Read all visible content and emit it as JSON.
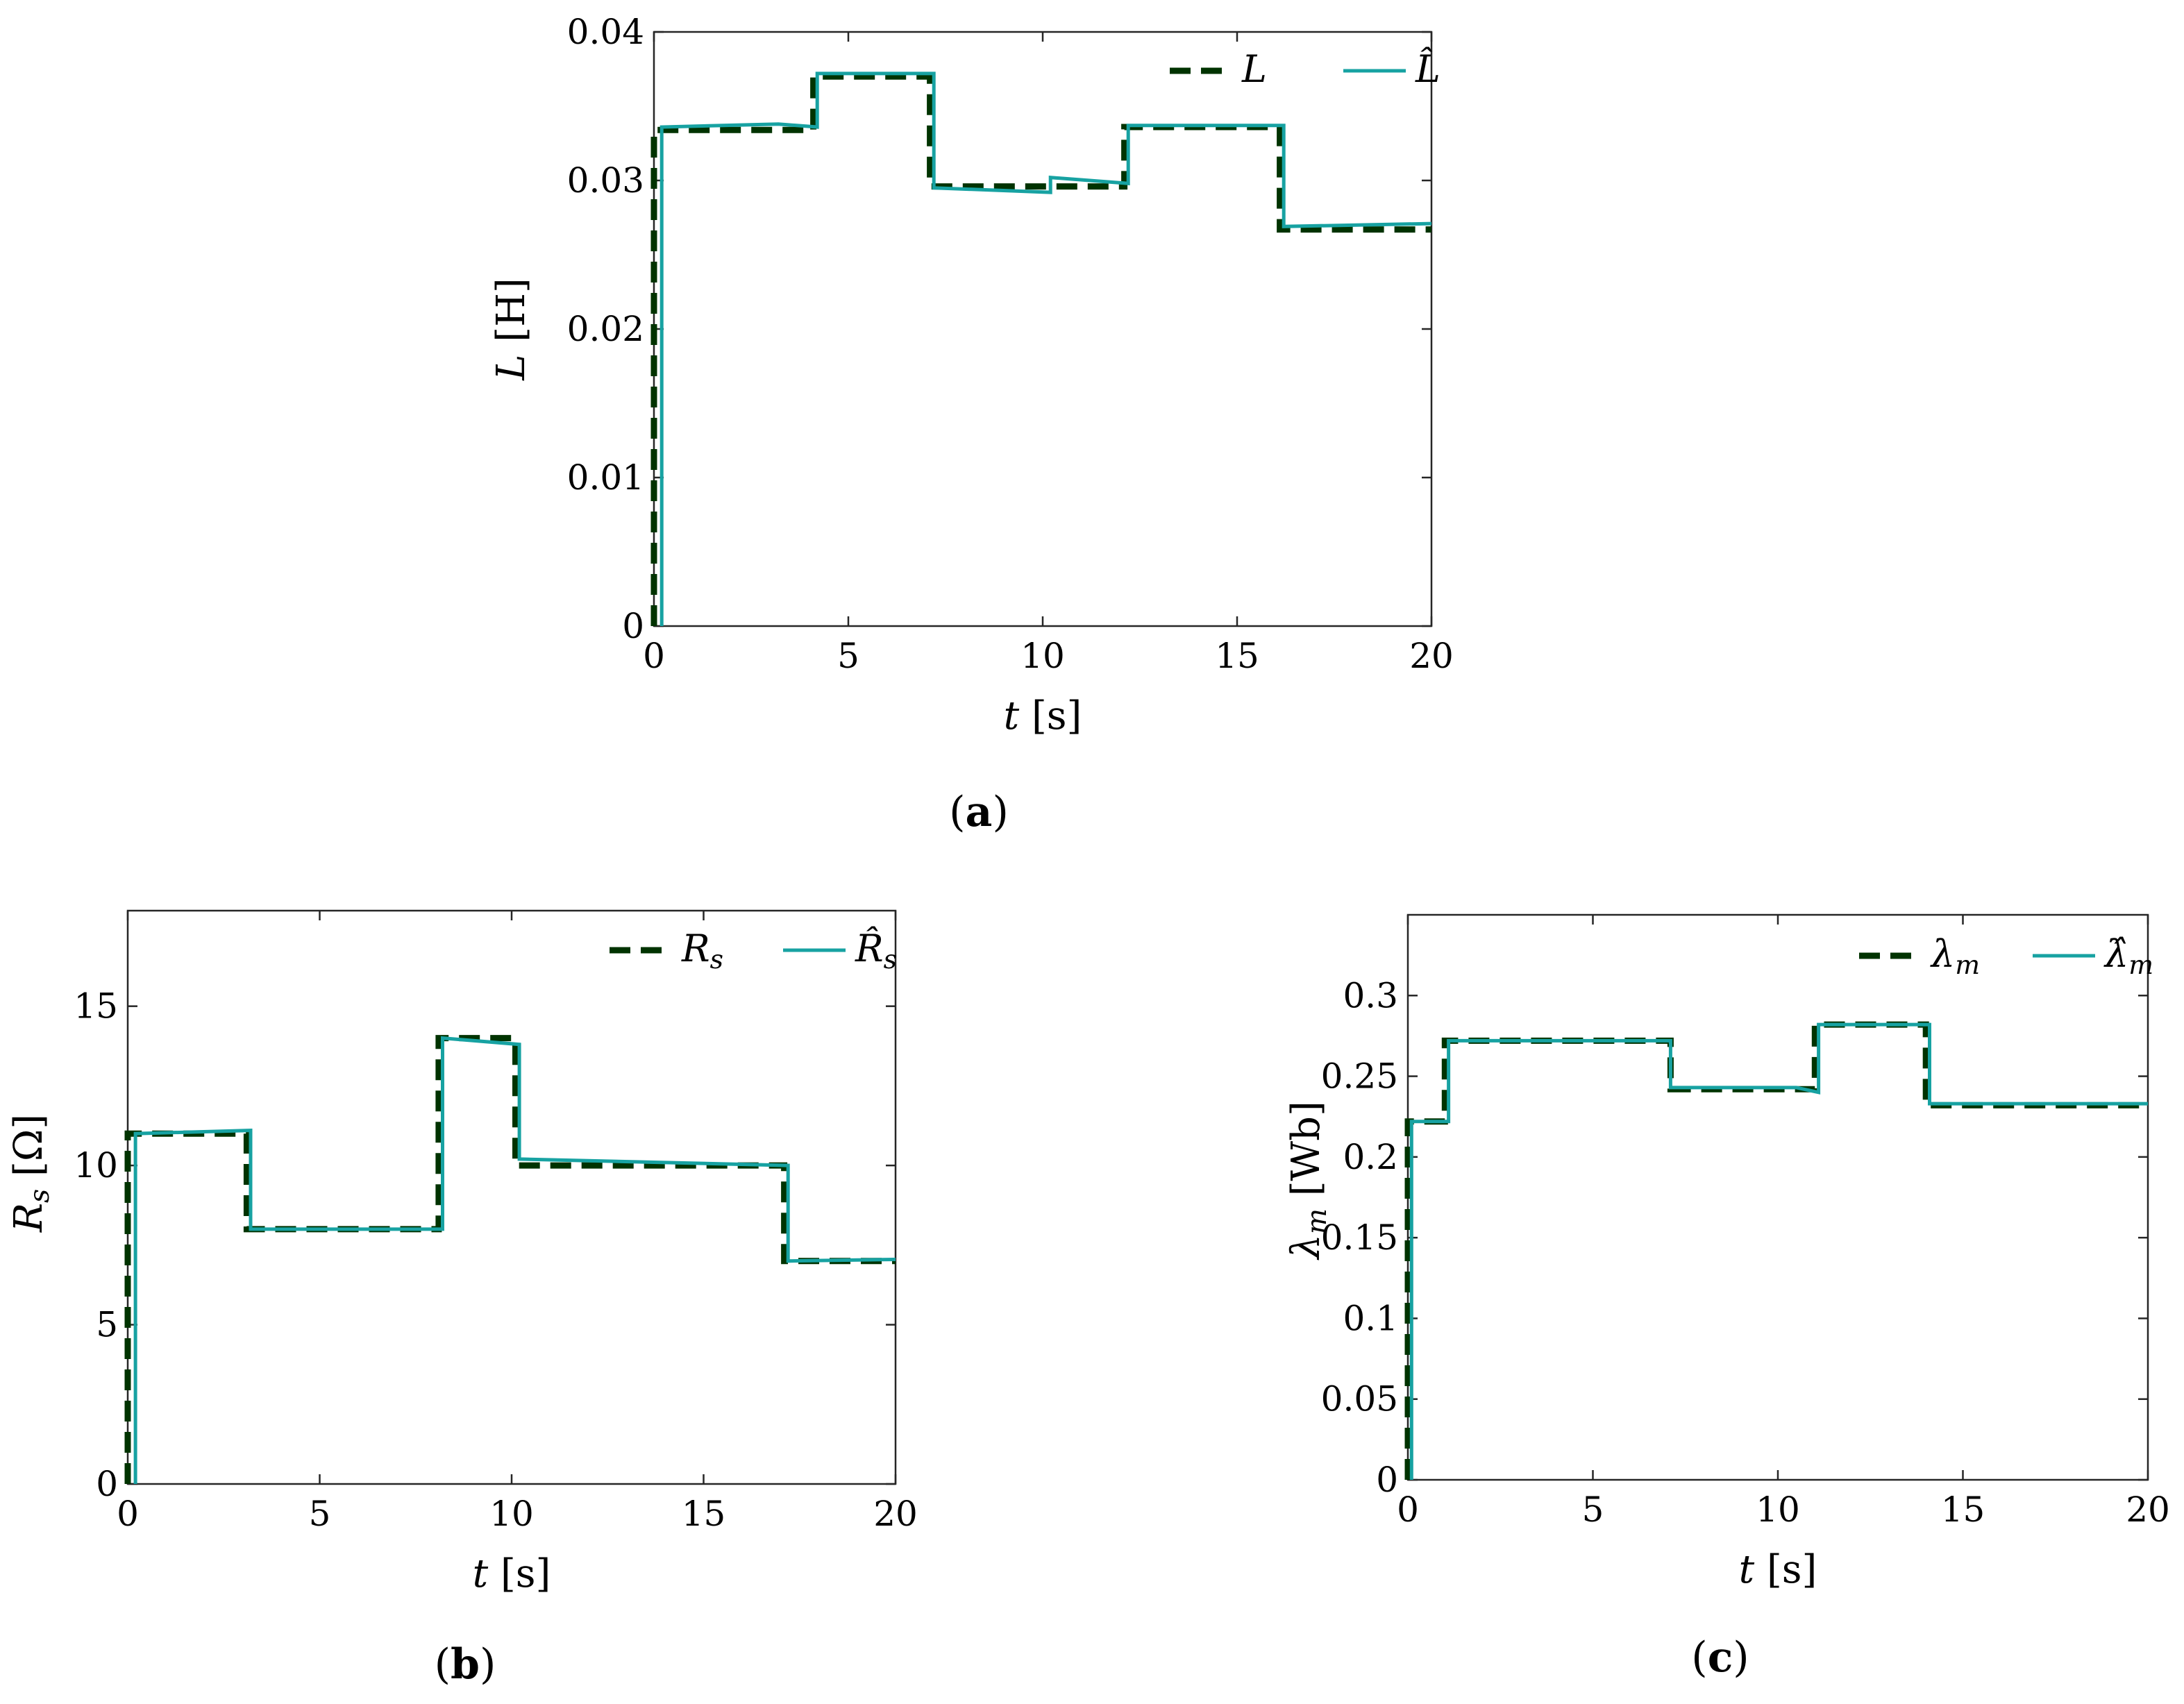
{
  "chart_data": [
    {
      "type": "line",
      "caption": "(a)",
      "xlabel": "t [s]",
      "ylabel": "L [H]",
      "xlim": [
        0,
        20
      ],
      "ylim": [
        0,
        0.04
      ],
      "xticks": [
        "0",
        "5",
        "10",
        "15",
        "20"
      ],
      "yticks": [
        "0",
        "0.01",
        "0.02",
        "0.03",
        "0.04"
      ],
      "legend_position": "top-right",
      "series": [
        {
          "name": "L",
          "style": "dashed",
          "color": "#003300",
          "x": [
            0,
            0,
            4.1,
            4.1,
            7.1,
            7.1,
            12.1,
            12.1,
            16.1,
            16.1,
            20
          ],
          "y": [
            0,
            0.0334,
            0.0334,
            0.037,
            0.037,
            0.0296,
            0.0296,
            0.0336,
            0.0336,
            0.0267,
            0.0267
          ]
        },
        {
          "name": "L̂",
          "style": "solid",
          "color": "#17a2a2",
          "x": [
            0.2,
            0.2,
            3.2,
            4.2,
            4.2,
            7.2,
            7.2,
            10.2,
            10.2,
            12.2,
            12.2,
            16.2,
            16.2,
            20
          ],
          "y": [
            0,
            0.0336,
            0.0338,
            0.0336,
            0.0372,
            0.0372,
            0.0295,
            0.0292,
            0.0302,
            0.0298,
            0.0337,
            0.0337,
            0.0269,
            0.0271
          ]
        }
      ]
    },
    {
      "type": "line",
      "caption": "(b)",
      "xlabel": "t [s]",
      "ylabel": "Rs [Ω]",
      "xlim": [
        0,
        20
      ],
      "ylim": [
        0,
        18
      ],
      "xticks": [
        "0",
        "5",
        "10",
        "15",
        "20"
      ],
      "yticks": [
        "0",
        "5",
        "10",
        "15"
      ],
      "legend_position": "top-right",
      "series": [
        {
          "name": "Rs",
          "style": "dashed",
          "color": "#003300",
          "x": [
            0,
            0,
            3.1,
            3.1,
            8.1,
            8.1,
            10.1,
            10.1,
            17.1,
            17.1,
            20
          ],
          "y": [
            0,
            11.0,
            11.0,
            8.0,
            8.0,
            14.0,
            14.0,
            10.0,
            10.0,
            7.0,
            7.0
          ]
        },
        {
          "name": "R̂s",
          "style": "solid",
          "color": "#17a2a2",
          "x": [
            0.2,
            0.2,
            3.2,
            3.2,
            8.2,
            8.2,
            10.2,
            10.2,
            17.2,
            17.2,
            20
          ],
          "y": [
            0,
            11.0,
            11.1,
            8.0,
            8.0,
            14.0,
            13.8,
            10.2,
            10.0,
            7.0,
            7.05
          ]
        }
      ]
    },
    {
      "type": "line",
      "caption": "(c)",
      "xlabel": "t [s]",
      "ylabel": "λm [Wb]",
      "xlim": [
        0,
        20
      ],
      "ylim": [
        0,
        0.35
      ],
      "xticks": [
        "0",
        "5",
        "10",
        "15",
        "20"
      ],
      "yticks": [
        "0",
        "0.05",
        "0.1",
        "0.15",
        "0.2",
        "0.25",
        "0.3"
      ],
      "legend_position": "top-right",
      "series": [
        {
          "name": "λm",
          "style": "dashed",
          "color": "#003300",
          "x": [
            0,
            0,
            1.0,
            1.0,
            7.1,
            7.1,
            11.0,
            11.0,
            14.0,
            14.0,
            20
          ],
          "y": [
            0,
            0.222,
            0.222,
            0.272,
            0.272,
            0.242,
            0.242,
            0.282,
            0.282,
            0.232,
            0.232
          ]
        },
        {
          "name": "λ̂m",
          "style": "solid",
          "color": "#17a2a2",
          "x": [
            0.1,
            0.1,
            1.1,
            1.1,
            7.1,
            7.1,
            10.5,
            11.1,
            11.1,
            14.1,
            14.1,
            20
          ],
          "y": [
            0,
            0.222,
            0.222,
            0.272,
            0.272,
            0.243,
            0.243,
            0.24,
            0.282,
            0.282,
            0.233,
            0.233
          ]
        }
      ]
    }
  ]
}
